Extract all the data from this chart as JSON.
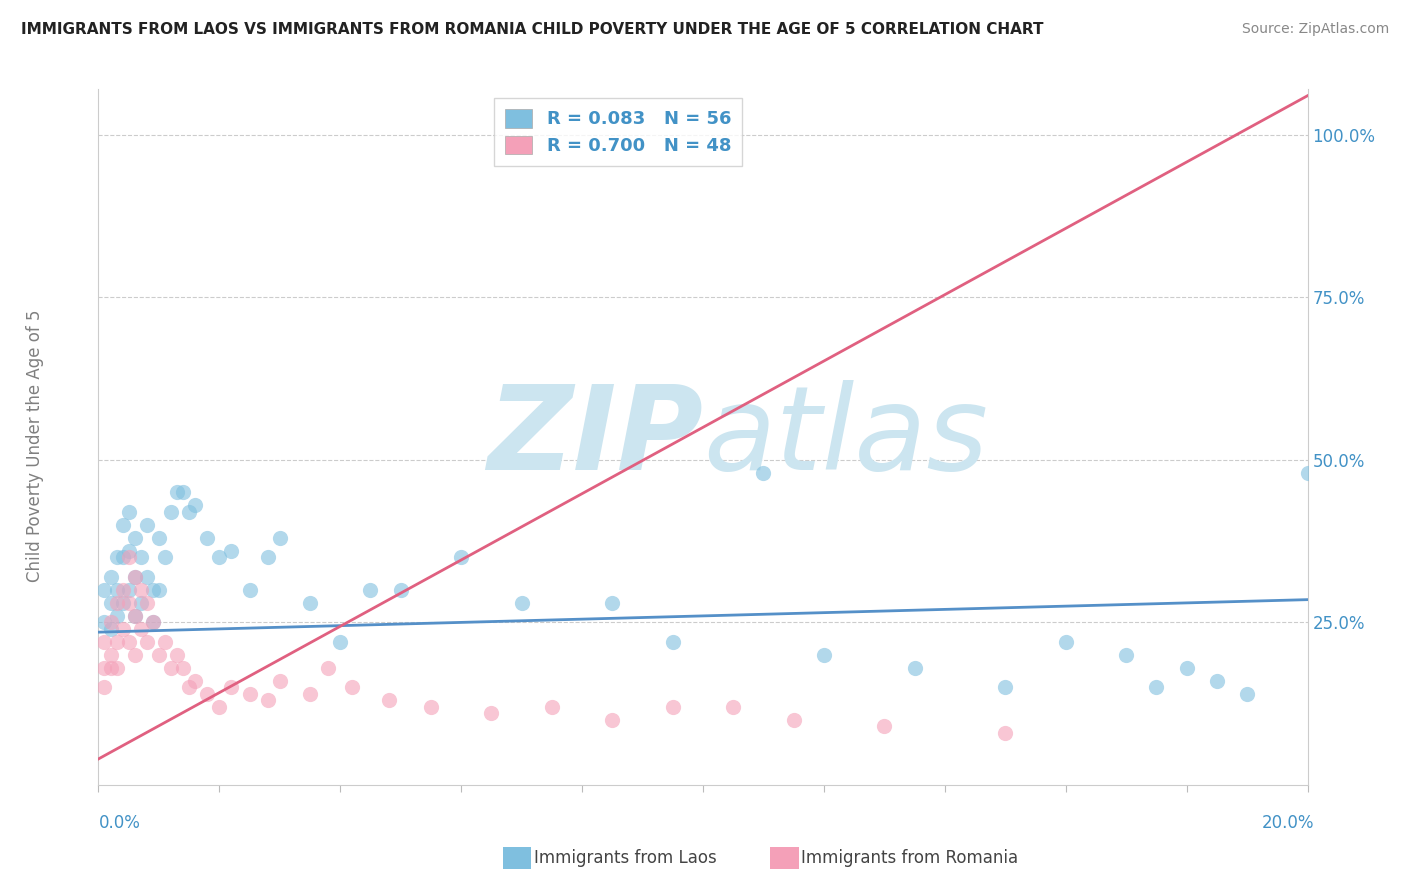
{
  "title": "IMMIGRANTS FROM LAOS VS IMMIGRANTS FROM ROMANIA CHILD POVERTY UNDER THE AGE OF 5 CORRELATION CHART",
  "source": "Source: ZipAtlas.com",
  "ylabel": "Child Poverty Under the Age of 5",
  "xlim": [
    0.0,
    0.2
  ],
  "ylim": [
    0.0,
    1.07
  ],
  "laos_R": 0.083,
  "laos_N": 56,
  "romania_R": 0.7,
  "romania_N": 48,
  "laos_color": "#7fbfdf",
  "romania_color": "#f4a0b8",
  "laos_line_color": "#5590c8",
  "romania_line_color": "#e06080",
  "watermark_color": "#cce5f0",
  "laos_trend_x": [
    0.0,
    0.2
  ],
  "laos_trend_y": [
    0.235,
    0.285
  ],
  "romania_trend_x": [
    0.0,
    0.2
  ],
  "romania_trend_y": [
    0.04,
    1.06
  ],
  "laos_scatter_x": [
    0.001,
    0.001,
    0.002,
    0.002,
    0.002,
    0.003,
    0.003,
    0.003,
    0.004,
    0.004,
    0.004,
    0.005,
    0.005,
    0.005,
    0.006,
    0.006,
    0.006,
    0.007,
    0.007,
    0.008,
    0.008,
    0.009,
    0.009,
    0.01,
    0.01,
    0.011,
    0.012,
    0.013,
    0.014,
    0.015,
    0.016,
    0.018,
    0.02,
    0.022,
    0.025,
    0.028,
    0.03,
    0.035,
    0.04,
    0.045,
    0.05,
    0.06,
    0.07,
    0.085,
    0.095,
    0.11,
    0.12,
    0.135,
    0.15,
    0.16,
    0.17,
    0.175,
    0.18,
    0.185,
    0.19,
    0.2
  ],
  "laos_scatter_y": [
    0.25,
    0.3,
    0.28,
    0.32,
    0.24,
    0.35,
    0.3,
    0.26,
    0.4,
    0.35,
    0.28,
    0.42,
    0.36,
    0.3,
    0.38,
    0.32,
    0.26,
    0.35,
    0.28,
    0.4,
    0.32,
    0.3,
    0.25,
    0.38,
    0.3,
    0.35,
    0.42,
    0.45,
    0.45,
    0.42,
    0.43,
    0.38,
    0.35,
    0.36,
    0.3,
    0.35,
    0.38,
    0.28,
    0.22,
    0.3,
    0.3,
    0.35,
    0.28,
    0.28,
    0.22,
    0.48,
    0.2,
    0.18,
    0.15,
    0.22,
    0.2,
    0.15,
    0.18,
    0.16,
    0.14,
    0.48
  ],
  "romania_scatter_x": [
    0.001,
    0.001,
    0.001,
    0.002,
    0.002,
    0.002,
    0.003,
    0.003,
    0.003,
    0.004,
    0.004,
    0.005,
    0.005,
    0.005,
    0.006,
    0.006,
    0.006,
    0.007,
    0.007,
    0.008,
    0.008,
    0.009,
    0.01,
    0.011,
    0.012,
    0.013,
    0.014,
    0.015,
    0.016,
    0.018,
    0.02,
    0.022,
    0.025,
    0.028,
    0.03,
    0.035,
    0.038,
    0.042,
    0.048,
    0.055,
    0.065,
    0.075,
    0.085,
    0.095,
    0.105,
    0.115,
    0.13,
    0.15
  ],
  "romania_scatter_y": [
    0.22,
    0.18,
    0.15,
    0.25,
    0.2,
    0.18,
    0.28,
    0.22,
    0.18,
    0.3,
    0.24,
    0.35,
    0.28,
    0.22,
    0.32,
    0.26,
    0.2,
    0.3,
    0.24,
    0.28,
    0.22,
    0.25,
    0.2,
    0.22,
    0.18,
    0.2,
    0.18,
    0.15,
    0.16,
    0.14,
    0.12,
    0.15,
    0.14,
    0.13,
    0.16,
    0.14,
    0.18,
    0.15,
    0.13,
    0.12,
    0.11,
    0.12,
    0.1,
    0.12,
    0.12,
    0.1,
    0.09,
    0.08
  ]
}
